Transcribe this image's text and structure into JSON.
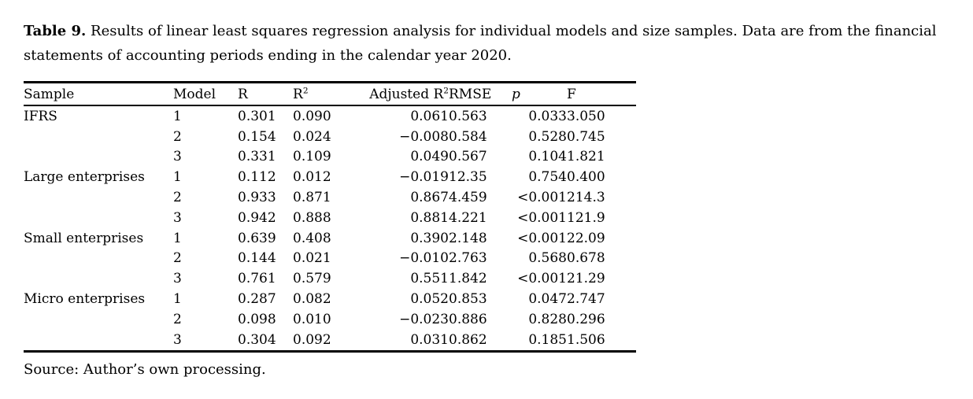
{
  "caption": {
    "label": "Table 9.",
    "text": "Results of linear least squares regression analysis for individual models and size samples. Data are from the financial statements of accounting periods ending in the calendar year 2020."
  },
  "table": {
    "headers": [
      {
        "text": "Sample"
      },
      {
        "text": "Model"
      },
      {
        "text": "R"
      },
      {
        "text": "R",
        "sup": "2"
      },
      {
        "text": "Adjusted R",
        "sup": "2"
      },
      {
        "text": "RMSE"
      },
      {
        "text": "p"
      },
      {
        "text": "F"
      }
    ],
    "rows": [
      {
        "sample": "IFRS",
        "model": "1",
        "r": "0.301",
        "r2": "0.090",
        "adj_r2": "0.061",
        "rmse": "0.563",
        "p": "0.033",
        "f": "3.050"
      },
      {
        "sample": "",
        "model": "2",
        "r": "0.154",
        "r2": "0.024",
        "adj_r2": "−0.008",
        "rmse": "0.584",
        "p": "0.528",
        "f": "0.745"
      },
      {
        "sample": "",
        "model": "3",
        "r": "0.331",
        "r2": "0.109",
        "adj_r2": "0.049",
        "rmse": "0.567",
        "p": "0.104",
        "f": "1.821"
      },
      {
        "sample": "Large enterprises",
        "model": "1",
        "r": "0.112",
        "r2": "0.012",
        "adj_r2": "−0.019",
        "rmse": "12.35",
        "p": "0.754",
        "f": "0.400"
      },
      {
        "sample": "",
        "model": "2",
        "r": "0.933",
        "r2": "0.871",
        "adj_r2": "0.867",
        "rmse": "4.459",
        "p": "<0.001",
        "f": "214.3"
      },
      {
        "sample": "",
        "model": "3",
        "r": "0.942",
        "r2": "0.888",
        "adj_r2": "0.881",
        "rmse": "4.221",
        "p": "<0.001",
        "f": "121.9"
      },
      {
        "sample": "Small enterprises",
        "model": "1",
        "r": "0.639",
        "r2": "0.408",
        "adj_r2": "0.390",
        "rmse": "2.148",
        "p": "<0.001",
        "f": "22.09"
      },
      {
        "sample": "",
        "model": "2",
        "r": "0.144",
        "r2": "0.021",
        "adj_r2": "−0.010",
        "rmse": "2.763",
        "p": "0.568",
        "f": "0.678"
      },
      {
        "sample": "",
        "model": "3",
        "r": "0.761",
        "r2": "0.579",
        "adj_r2": "0.551",
        "rmse": "1.842",
        "p": "<0.001",
        "f": "21.29"
      },
      {
        "sample": "Micro enterprises",
        "model": "1",
        "r": "0.287",
        "r2": "0.082",
        "adj_r2": "0.052",
        "rmse": "0.853",
        "p": "0.047",
        "f": "2.747"
      },
      {
        "sample": "",
        "model": "2",
        "r": "0.098",
        "r2": "0.010",
        "adj_r2": "−0.023",
        "rmse": "0.886",
        "p": "0.828",
        "f": "0.296"
      },
      {
        "sample": "",
        "model": "3",
        "r": "0.304",
        "r2": "0.092",
        "adj_r2": "0.031",
        "rmse": "0.862",
        "p": "0.185",
        "f": "1.506"
      }
    ]
  },
  "source": "Source: Author’s own processing."
}
